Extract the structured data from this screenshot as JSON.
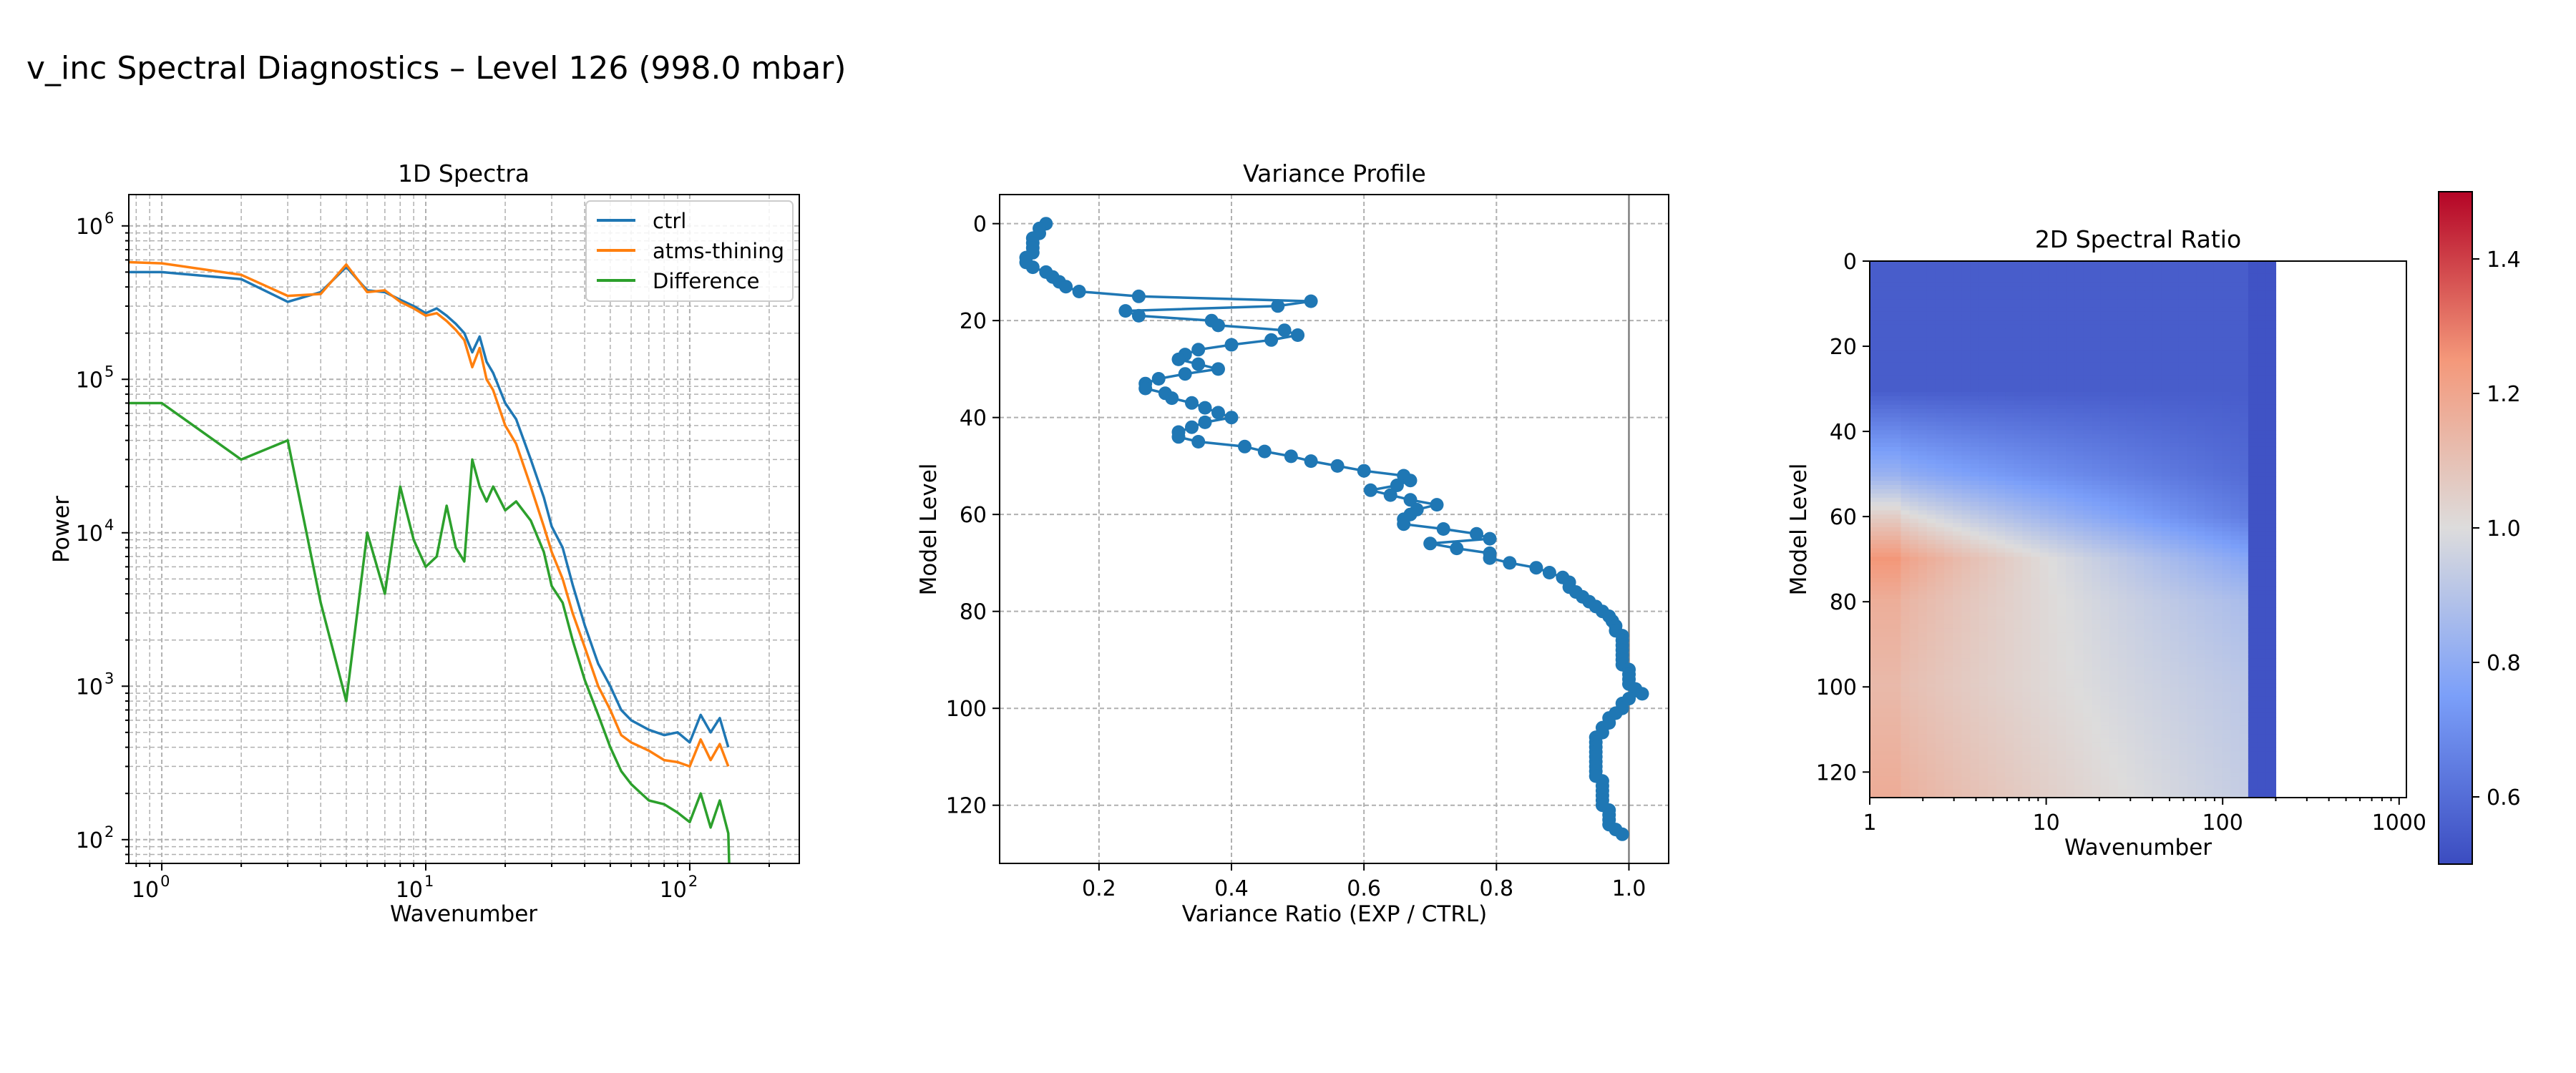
{
  "figure": {
    "suptitle": "v_inc Spectral Diagnostics – Level 126 (998.0 mbar)"
  },
  "chart_data": [
    {
      "type": "line",
      "title": "1D Spectra",
      "xlabel": "Wavenumber",
      "ylabel": "Power",
      "xscale": "log",
      "yscale": "log",
      "xlim": [
        0.75,
        260
      ],
      "ylim": [
        70,
        1600000
      ],
      "xticks": [
        {
          "value": 1,
          "base": "10",
          "exp": "0"
        },
        {
          "value": 10,
          "base": "10",
          "exp": "1"
        },
        {
          "value": 100,
          "base": "10",
          "exp": "2"
        }
      ],
      "yticks": [
        {
          "value": 100,
          "base": "10",
          "exp": "2"
        },
        {
          "value": 1000,
          "base": "10",
          "exp": "3"
        },
        {
          "value": 10000,
          "base": "10",
          "exp": "4"
        },
        {
          "value": 100000,
          "base": "10",
          "exp": "5"
        },
        {
          "value": 1000000,
          "base": "10",
          "exp": "6"
        }
      ],
      "grid": "both-major-minor",
      "legend": "top-right",
      "series": [
        {
          "name": "ctrl",
          "color": "#1f77b4",
          "x": [
            0.75,
            1,
            2,
            3,
            4,
            5,
            6,
            7,
            8,
            9,
            10,
            11,
            12,
            13,
            14,
            15,
            16,
            17,
            18,
            20,
            22,
            25,
            28,
            30,
            33,
            36,
            40,
            45,
            50,
            55,
            60,
            70,
            80,
            90,
            100,
            110,
            120,
            130,
            140
          ],
          "y": [
            500000,
            500000,
            450000,
            320000,
            370000,
            540000,
            380000,
            370000,
            330000,
            300000,
            270000,
            290000,
            260000,
            230000,
            200000,
            150000,
            190000,
            130000,
            110000,
            70000,
            55000,
            30000,
            17000,
            11000,
            8000,
            4600,
            2500,
            1400,
            1000,
            700,
            600,
            520,
            480,
            500,
            430,
            650,
            500,
            620,
            400
          ]
        },
        {
          "name": "atms-thining",
          "color": "#ff7f0e",
          "x": [
            0.75,
            1,
            2,
            3,
            4,
            5,
            6,
            7,
            8,
            9,
            10,
            11,
            12,
            13,
            14,
            15,
            16,
            17,
            18,
            20,
            22,
            25,
            28,
            30,
            33,
            36,
            40,
            45,
            50,
            55,
            60,
            70,
            80,
            90,
            100,
            110,
            120,
            130,
            140
          ],
          "y": [
            580000,
            570000,
            480000,
            350000,
            360000,
            560000,
            370000,
            380000,
            320000,
            290000,
            260000,
            270000,
            240000,
            210000,
            180000,
            120000,
            160000,
            100000,
            85000,
            50000,
            38000,
            20000,
            11000,
            7500,
            5000,
            3000,
            1800,
            1000,
            700,
            480,
            430,
            380,
            330,
            320,
            300,
            450,
            330,
            420,
            300
          ]
        },
        {
          "name": "Difference",
          "color": "#2ca02c",
          "x": [
            0.75,
            1,
            2,
            3,
            4,
            5,
            6,
            7,
            8,
            9,
            10,
            11,
            12,
            13,
            14,
            15,
            16,
            17,
            18,
            20,
            22,
            25,
            28,
            30,
            33,
            36,
            40,
            45,
            50,
            55,
            60,
            70,
            80,
            90,
            100,
            110,
            120,
            130,
            140,
            141
          ],
          "y": [
            70000,
            70000,
            30000,
            40000,
            3500,
            800,
            10000,
            4000,
            20000,
            9000,
            6000,
            7000,
            15000,
            8000,
            6500,
            30000,
            20000,
            16000,
            20000,
            14000,
            16000,
            12000,
            7500,
            4500,
            3500,
            2000,
            1100,
            650,
            400,
            280,
            230,
            180,
            170,
            150,
            130,
            200,
            120,
            180,
            110,
            70
          ]
        }
      ]
    },
    {
      "type": "line",
      "title": "Variance Profile",
      "xlabel": "Variance Ratio (EXP / CTRL)",
      "ylabel": "Model Level",
      "xlim": [
        0.05,
        1.06
      ],
      "ylim": [
        132,
        -6
      ],
      "xticks": [
        "0.2",
        "0.4",
        "0.6",
        "0.8",
        "1.0"
      ],
      "yticks": [
        "0",
        "20",
        "40",
        "60",
        "80",
        "100",
        "120"
      ],
      "reference_line_x": 1.0,
      "grid": true,
      "series": [
        {
          "name": "",
          "color": "#1f77b4",
          "level": [
            0,
            1,
            2,
            3,
            4,
            5,
            6,
            7,
            8,
            9,
            10,
            11,
            12,
            13,
            14,
            15,
            16,
            17,
            18,
            19,
            20,
            21,
            22,
            23,
            24,
            25,
            26,
            27,
            28,
            29,
            30,
            31,
            32,
            33,
            34,
            35,
            36,
            37,
            38,
            39,
            40,
            41,
            42,
            43,
            44,
            45,
            46,
            47,
            48,
            49,
            50,
            51,
            52,
            53,
            54,
            55,
            56,
            57,
            58,
            59,
            60,
            61,
            62,
            63,
            64,
            65,
            66,
            67,
            68,
            69,
            70,
            71,
            72,
            73,
            74,
            75,
            76,
            77,
            78,
            79,
            80,
            81,
            82,
            83,
            84,
            85,
            86,
            87,
            88,
            89,
            90,
            91,
            92,
            93,
            94,
            95,
            96,
            97,
            98,
            99,
            100,
            101,
            102,
            103,
            104,
            105,
            106,
            107,
            108,
            109,
            110,
            111,
            112,
            113,
            114,
            115,
            116,
            117,
            118,
            119,
            120,
            121,
            122,
            123,
            124,
            125,
            126
          ],
          "ratio": [
            0.12,
            0.11,
            0.11,
            0.1,
            0.1,
            0.1,
            0.1,
            0.09,
            0.09,
            0.1,
            0.12,
            0.13,
            0.14,
            0.15,
            0.17,
            0.26,
            0.52,
            0.47,
            0.24,
            0.26,
            0.37,
            0.38,
            0.48,
            0.5,
            0.46,
            0.4,
            0.35,
            0.33,
            0.32,
            0.35,
            0.38,
            0.33,
            0.29,
            0.27,
            0.27,
            0.3,
            0.31,
            0.34,
            0.36,
            0.38,
            0.4,
            0.36,
            0.34,
            0.32,
            0.32,
            0.35,
            0.42,
            0.45,
            0.49,
            0.52,
            0.56,
            0.6,
            0.66,
            0.67,
            0.65,
            0.61,
            0.64,
            0.67,
            0.71,
            0.68,
            0.67,
            0.66,
            0.66,
            0.72,
            0.77,
            0.79,
            0.7,
            0.74,
            0.79,
            0.79,
            0.82,
            0.86,
            0.88,
            0.9,
            0.91,
            0.91,
            0.92,
            0.93,
            0.94,
            0.95,
            0.96,
            0.97,
            0.975,
            0.98,
            0.98,
            0.99,
            0.99,
            0.99,
            0.99,
            0.99,
            0.99,
            0.99,
            1.0,
            1.0,
            1.0,
            1.0,
            1.01,
            1.02,
            1.0,
            0.99,
            0.99,
            0.98,
            0.97,
            0.97,
            0.96,
            0.96,
            0.95,
            0.95,
            0.95,
            0.95,
            0.95,
            0.95,
            0.95,
            0.95,
            0.95,
            0.96,
            0.96,
            0.96,
            0.96,
            0.96,
            0.96,
            0.97,
            0.97,
            0.97,
            0.97,
            0.98,
            0.99
          ]
        }
      ]
    },
    {
      "type": "heatmap",
      "title": "2D Spectral Ratio",
      "xlabel": "Wavenumber",
      "ylabel": "Model Level",
      "xscale": "log",
      "xlim": [
        1,
        1100
      ],
      "ylim": [
        126,
        0
      ],
      "data_xmax": 200,
      "xticks": [
        "1",
        "10",
        "100",
        "1000"
      ],
      "yticks": [
        "0",
        "20",
        "40",
        "60",
        "80",
        "100",
        "120"
      ],
      "colormap": "coolwarm",
      "vmin": 0.5,
      "vmax": 1.5,
      "colorbar_ticks": [
        "0.6",
        "0.8",
        "1.0",
        "1.2",
        "1.4"
      ],
      "colorbar_values": [
        0.6,
        0.8,
        1.0,
        1.2,
        1.4
      ],
      "description_levels": [
        0,
        30,
        50,
        60,
        70,
        80,
        100,
        126
      ],
      "description_ratio_low_k": [
        0.55,
        0.55,
        0.85,
        1.1,
        1.3,
        1.2,
        1.15,
        1.2
      ],
      "description_ratio_high_k": [
        0.55,
        0.55,
        0.58,
        0.62,
        0.75,
        0.85,
        0.9,
        0.92
      ]
    }
  ]
}
